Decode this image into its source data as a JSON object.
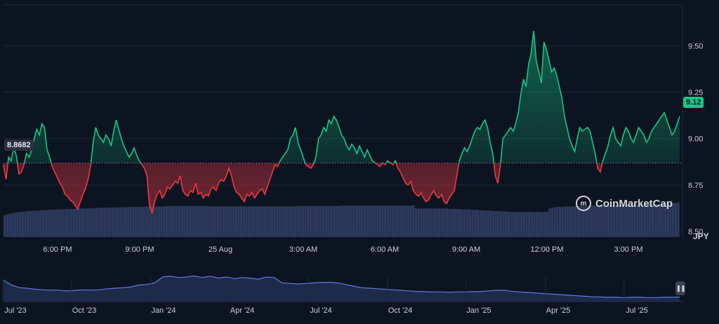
{
  "chart_data": {
    "type": "line",
    "currency_unit": "JPY",
    "base_value": 8.8682,
    "current_value": "9.12",
    "base_value_label": "8.8682",
    "y_ticks": [
      "9.50",
      "9.25",
      "9.00",
      "8.75",
      "8.50"
    ],
    "y_tick_values": [
      9.5,
      9.25,
      9.0,
      8.75,
      8.5
    ],
    "ylim": [
      8.47,
      9.72
    ],
    "x_ticks": [
      "6:00 PM",
      "9:00 PM",
      "25 Aug",
      "3:00 AM",
      "6:00 AM",
      "9:00 AM",
      "12:00 PM",
      "3:00 PM"
    ],
    "colors": {
      "above": "#16c784",
      "below": "#ea3943",
      "volume": "#2e3a5c",
      "navigator": "#5b7be0"
    },
    "series": [
      {
        "values": [
          8.86,
          8.78,
          8.9,
          8.88,
          8.95,
          8.91,
          8.81,
          8.82,
          8.86,
          8.92,
          8.9,
          8.94,
          9.0,
          9.05,
          9.02,
          9.08,
          9.06,
          8.94,
          8.9,
          8.85,
          8.82,
          8.79,
          8.76,
          8.74,
          8.7,
          8.69,
          8.67,
          8.66,
          8.64,
          8.62,
          8.66,
          8.7,
          8.73,
          8.78,
          8.85,
          8.98,
          9.06,
          9.02,
          9.0,
          8.98,
          9.02,
          9.0,
          8.96,
          9.04,
          9.1,
          9.05,
          9.0,
          8.96,
          8.93,
          8.9,
          8.92,
          8.95,
          8.91,
          8.88,
          8.86,
          8.84,
          8.8,
          8.64,
          8.6,
          8.66,
          8.7,
          8.72,
          8.68,
          8.7,
          8.74,
          8.73,
          8.75,
          8.77,
          8.76,
          8.8,
          8.72,
          8.7,
          8.69,
          8.72,
          8.71,
          8.76,
          8.7,
          8.71,
          8.68,
          8.7,
          8.69,
          8.73,
          8.74,
          8.72,
          8.76,
          8.78,
          8.77,
          8.8,
          8.84,
          8.8,
          8.74,
          8.71,
          8.7,
          8.68,
          8.66,
          8.7,
          8.69,
          8.71,
          8.68,
          8.7,
          8.72,
          8.73,
          8.7,
          8.74,
          8.78,
          8.82,
          8.86,
          8.85,
          8.88,
          8.9,
          8.92,
          8.94,
          9.0,
          9.02,
          9.06,
          8.98,
          8.94,
          8.9,
          8.86,
          8.85,
          8.84,
          8.86,
          8.9,
          9.0,
          9.02,
          9.06,
          9.04,
          9.1,
          9.08,
          9.12,
          9.1,
          9.06,
          9.02,
          9.0,
          8.96,
          8.94,
          8.97,
          8.95,
          8.92,
          8.96,
          8.93,
          8.9,
          8.94,
          8.91,
          8.88,
          8.87,
          8.86,
          8.85,
          8.87,
          8.86,
          8.88,
          8.87,
          8.86,
          8.88,
          8.84,
          8.82,
          8.79,
          8.76,
          8.75,
          8.77,
          8.72,
          8.7,
          8.69,
          8.71,
          8.68,
          8.66,
          8.67,
          8.7,
          8.72,
          8.69,
          8.68,
          8.7,
          8.66,
          8.65,
          8.68,
          8.7,
          8.72,
          8.8,
          8.88,
          8.92,
          8.95,
          8.93,
          8.96,
          9.0,
          9.04,
          9.06,
          9.05,
          9.08,
          9.1,
          9.06,
          8.98,
          8.92,
          8.8,
          8.76,
          8.86,
          9.0,
          9.02,
          9.04,
          9.06,
          9.04,
          9.08,
          9.14,
          9.24,
          9.32,
          9.28,
          9.4,
          9.46,
          9.58,
          9.42,
          9.36,
          9.3,
          9.52,
          9.48,
          9.42,
          9.36,
          9.38,
          9.34,
          9.28,
          9.22,
          9.12,
          9.06,
          9.0,
          8.96,
          8.93,
          9.0,
          9.06,
          9.04,
          9.05,
          9.06,
          9.04,
          8.98,
          8.92,
          8.84,
          8.82,
          8.88,
          8.92,
          8.96,
          9.02,
          9.06,
          9.0,
          8.98,
          8.96,
          9.02,
          9.06,
          9.04,
          9.0,
          8.98,
          9.02,
          9.06,
          9.04,
          9.02,
          8.98,
          9.0,
          9.04,
          9.06,
          9.08,
          9.1,
          9.12,
          9.14,
          9.1,
          9.06,
          9.02,
          9.04,
          9.08,
          9.12
        ]
      }
    ],
    "volume": [
      0.52,
      0.54,
      0.56,
      0.57,
      0.58,
      0.59,
      0.6,
      0.6,
      0.61,
      0.62,
      0.62,
      0.63,
      0.63,
      0.63,
      0.64,
      0.64,
      0.64,
      0.65,
      0.65,
      0.65,
      0.66,
      0.66,
      0.66,
      0.66,
      0.67,
      0.67,
      0.67,
      0.67,
      0.68,
      0.68,
      0.68,
      0.68,
      0.68,
      0.69,
      0.69,
      0.69,
      0.69,
      0.7,
      0.7,
      0.7,
      0.7,
      0.7,
      0.71,
      0.71,
      0.71,
      0.71,
      0.71,
      0.71,
      0.72,
      0.72,
      0.72,
      0.72,
      0.72,
      0.72,
      0.72,
      0.73,
      0.73,
      0.73,
      0.73,
      0.73,
      0.73,
      0.73,
      0.73,
      0.74,
      0.74,
      0.74,
      0.74,
      0.74,
      0.74,
      0.74,
      0.74,
      0.74,
      0.74,
      0.74,
      0.74,
      0.74,
      0.74,
      0.74,
      0.74,
      0.74,
      0.73,
      0.73,
      0.73,
      0.73,
      0.73,
      0.73,
      0.73,
      0.73,
      0.73,
      0.73,
      0.73,
      0.73,
      0.73,
      0.73,
      0.73,
      0.73,
      0.73,
      0.73,
      0.73,
      0.73,
      0.73,
      0.73,
      0.73,
      0.73,
      0.73,
      0.73,
      0.73,
      0.73,
      0.73,
      0.73,
      0.73,
      0.73,
      0.73,
      0.73,
      0.74,
      0.74,
      0.74,
      0.74,
      0.74,
      0.74,
      0.74,
      0.74,
      0.74,
      0.74,
      0.74,
      0.74,
      0.74,
      0.74,
      0.74,
      0.74,
      0.74,
      0.75,
      0.75,
      0.75,
      0.75,
      0.75,
      0.75,
      0.75,
      0.75,
      0.75,
      0.75,
      0.75,
      0.75,
      0.75,
      0.75,
      0.75,
      0.75,
      0.75,
      0.75,
      0.75,
      0.75,
      0.75,
      0.75,
      0.75,
      0.75,
      0.75,
      0.75,
      0.75,
      0.75,
      0.76,
      0.68,
      0.68,
      0.68,
      0.68,
      0.68,
      0.68,
      0.68,
      0.68,
      0.68,
      0.68,
      0.68,
      0.68,
      0.68,
      0.67,
      0.67,
      0.67,
      0.67,
      0.67,
      0.66,
      0.66,
      0.66,
      0.66,
      0.65,
      0.65,
      0.65,
      0.64,
      0.64,
      0.64,
      0.63,
      0.63,
      0.62,
      0.62,
      0.62,
      0.61,
      0.61,
      0.61,
      0.6,
      0.6,
      0.6,
      0.6,
      0.6,
      0.6,
      0.6,
      0.6,
      0.6,
      0.6,
      0.6,
      0.6,
      0.6,
      0.6,
      0.6,
      0.6,
      0.68,
      0.7,
      0.71,
      0.72,
      0.72,
      0.72,
      0.73,
      0.73,
      0.73,
      0.73,
      0.74,
      0.74,
      0.74,
      0.74,
      0.74,
      0.75,
      0.75,
      0.75,
      0.75,
      0.75,
      0.75,
      0.76,
      0.76,
      0.76,
      0.76,
      0.76,
      0.76,
      0.77,
      0.77,
      0.77,
      0.77,
      0.77,
      0.78,
      0.78,
      0.78,
      0.78,
      0.78,
      0.78,
      0.79,
      0.79,
      0.79,
      0.79,
      0.79,
      0.8,
      0.8,
      0.8,
      0.8,
      0.8,
      0.81,
      0.81,
      0.82
    ],
    "navigator": {
      "x_ticks": [
        "Jul '23",
        "Oct '23",
        "Jan '24",
        "Apr '24",
        "Jul '24",
        "Oct '24",
        "Jan '25",
        "Apr '25",
        "Jul '25"
      ],
      "values": [
        0.8,
        0.62,
        0.52,
        0.5,
        0.46,
        0.44,
        0.43,
        0.43,
        0.4,
        0.42,
        0.44,
        0.43,
        0.44,
        0.48,
        0.5,
        0.52,
        0.55,
        0.62,
        0.64,
        0.7,
        0.92,
        0.95,
        0.9,
        0.92,
        0.96,
        0.9,
        0.95,
        0.88,
        0.92,
        0.86,
        0.9,
        0.88,
        0.84,
        0.92,
        0.9,
        0.7,
        0.68,
        0.66,
        0.68,
        0.7,
        0.72,
        0.72,
        0.7,
        0.64,
        0.58,
        0.52,
        0.5,
        0.48,
        0.46,
        0.44,
        0.42,
        0.4,
        0.38,
        0.37,
        0.36,
        0.36,
        0.35,
        0.36,
        0.36,
        0.37,
        0.38,
        0.4,
        0.42,
        0.42,
        0.38,
        0.36,
        0.34,
        0.32,
        0.3,
        0.28,
        0.26,
        0.24,
        0.22,
        0.2,
        0.18,
        0.17,
        0.16,
        0.16,
        0.15,
        0.16,
        0.16,
        0.15,
        0.15,
        0.16,
        0.16,
        0.17
      ]
    }
  },
  "branding": {
    "logo_text": "CoinMarketCap"
  }
}
